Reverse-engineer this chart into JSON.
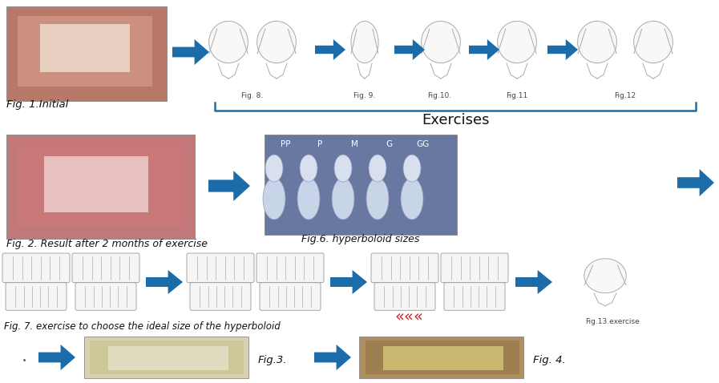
{
  "bg_color": "#ffffff",
  "arrow_color": "#1b6ca8",
  "bracket_color": "#1b6ca8",
  "exercises_text": "Exercises",
  "fig1_label": "Fig. 1.Initial",
  "fig2_label": "Fig. 2. Result after 2 months of exercise",
  "fig3_label": "Fig.3.",
  "fig4_label": "Fig. 4.",
  "fig6_label": "Fig.6. hyperboloid sizes",
  "fig7_label": "Fig. 7. exercise to choose the ideal size of the hyperboloid",
  "fig8_label": "Fig. 8.",
  "fig9_label": "Fig. 9.",
  "fig10_label": "Fig.10.",
  "fig11_label": "Fig.11",
  "fig12_label": "Fig.12",
  "fig13_label": "Fig.13.exercise",
  "photo1_color": "#b87868",
  "photo2_color": "#c07878",
  "photo3_color": "#d8d0b0",
  "photo4_color": "#b09060",
  "photo6_bg": "#6878a0",
  "drawing_color": "#f8f8f8",
  "drawing_stroke": "#aaaaaa",
  "teeth_color": "#f5f5f5",
  "teeth_stroke": "#999999"
}
